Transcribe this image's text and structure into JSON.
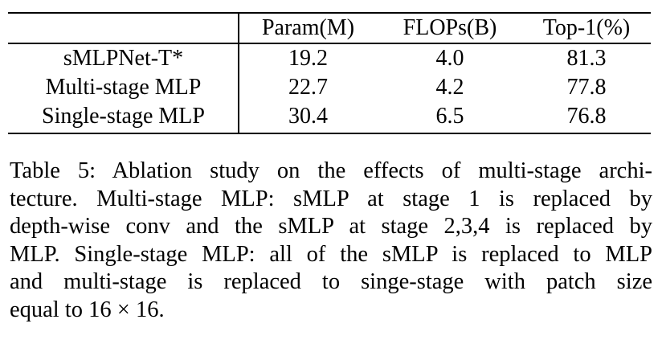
{
  "table": {
    "header": [
      "Param(M)",
      "FLOPs(B)",
      "Top-1(%)"
    ],
    "rows": [
      [
        "sMLPNet-T*",
        "19.2",
        "4.0",
        "81.3"
      ],
      [
        "Multi-stage MLP",
        "22.7",
        "4.2",
        "77.8"
      ],
      [
        "Single-stage MLP",
        "30.4",
        "6.5",
        "76.8"
      ]
    ]
  },
  "caption": [
    "Table 5: Ablation study on the effects of multi-stage archi-",
    "tecture. Multi-stage MLP: sMLP at stage 1 is replaced by",
    "depth-wise conv and the sMLP at stage 2,3,4 is replaced by",
    "MLP. Single-stage MLP: all of the sMLP is replaced to MLP",
    "and multi-stage is replaced to singe-stage with patch size",
    "equal to 16 × 16."
  ]
}
